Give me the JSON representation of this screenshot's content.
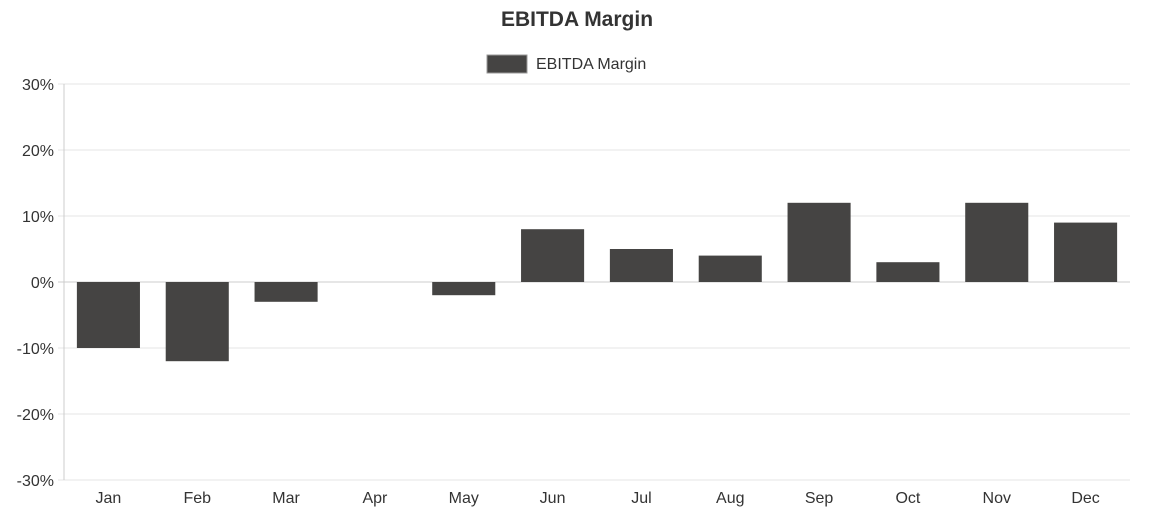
{
  "chart_data": {
    "type": "bar",
    "title": "EBITDA Margin",
    "xlabel": "",
    "ylabel": "",
    "categories": [
      "Jan",
      "Feb",
      "Mar",
      "Apr",
      "May",
      "Jun",
      "Jul",
      "Aug",
      "Sep",
      "Oct",
      "Nov",
      "Dec"
    ],
    "series": [
      {
        "name": "EBITDA Margin",
        "values": [
          -10,
          -12,
          -3,
          0,
          -2,
          8,
          5,
          4,
          12,
          3,
          12,
          9
        ]
      }
    ],
    "ylim": [
      -30,
      30
    ],
    "yticks": [
      30,
      20,
      10,
      0,
      -10,
      -20,
      -30
    ],
    "ytick_labels": [
      "30%",
      "20%",
      "10%",
      "0%",
      "-10%",
      "-20%",
      "-30%"
    ],
    "grid": true,
    "legend_position": "top-center",
    "bar_color": "#454443"
  }
}
